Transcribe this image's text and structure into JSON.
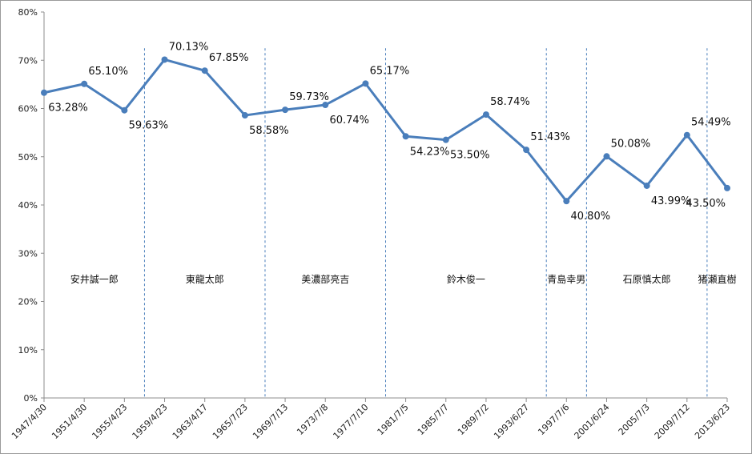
{
  "chart_data": {
    "type": "line",
    "title": "",
    "xlabel": "",
    "ylabel": "",
    "ylim": [
      0,
      80
    ],
    "y_ticks": [
      "0%",
      "10%",
      "20%",
      "30%",
      "40%",
      "50%",
      "60%",
      "70%",
      "80%"
    ],
    "categories": [
      "1947/4/30",
      "1951/4/30",
      "1955/4/23",
      "1959/4/23",
      "1963/4/17",
      "1965/7/23",
      "1969/7/13",
      "1973/7/8",
      "1977/7/10",
      "1981/7/5",
      "1985/7/7",
      "1989/7/2",
      "1993/6/27",
      "1997/7/6",
      "2001/6/24",
      "2005/7/3",
      "2009/7/12",
      "2013/6/23"
    ],
    "series": [
      {
        "values": [
          63.28,
          65.1,
          59.63,
          70.13,
          67.85,
          58.58,
          59.73,
          60.74,
          65.17,
          54.23,
          53.5,
          58.74,
          51.43,
          40.8,
          50.08,
          43.99,
          54.49,
          43.5
        ],
        "labels": [
          "63.28%",
          "65.10%",
          "59.63%",
          "70.13%",
          "67.85%",
          "58.58%",
          "59.73%",
          "60.74%",
          "65.17%",
          "54.23%",
          "53.50%",
          "58.74%",
          "51.43%",
          "40.80%",
          "50.08%",
          "43.99%",
          "54.49%",
          "43.50%"
        ]
      }
    ],
    "line_color": "#4a7ebb",
    "grid": false,
    "divider_color": "#4a7ebb",
    "dividers_after_index": [
      2.5,
      5.5,
      8.5,
      12.5,
      13.5,
      16.5
    ],
    "periods": [
      {
        "name": "安井誠一郎",
        "start": 0,
        "end": 2.5
      },
      {
        "name": "東龍太郎",
        "start": 2.5,
        "end": 5.5
      },
      {
        "name": "美濃部亮吉",
        "start": 5.5,
        "end": 8.5
      },
      {
        "name": "鈴木俊一",
        "start": 8.5,
        "end": 12.5
      },
      {
        "name": "青島幸男",
        "start": 12.5,
        "end": 13.5
      },
      {
        "name": "石原慎太郎",
        "start": 13.5,
        "end": 16.5
      },
      {
        "name": "猪瀬直樹",
        "start": 16.5,
        "end": 17
      }
    ]
  }
}
